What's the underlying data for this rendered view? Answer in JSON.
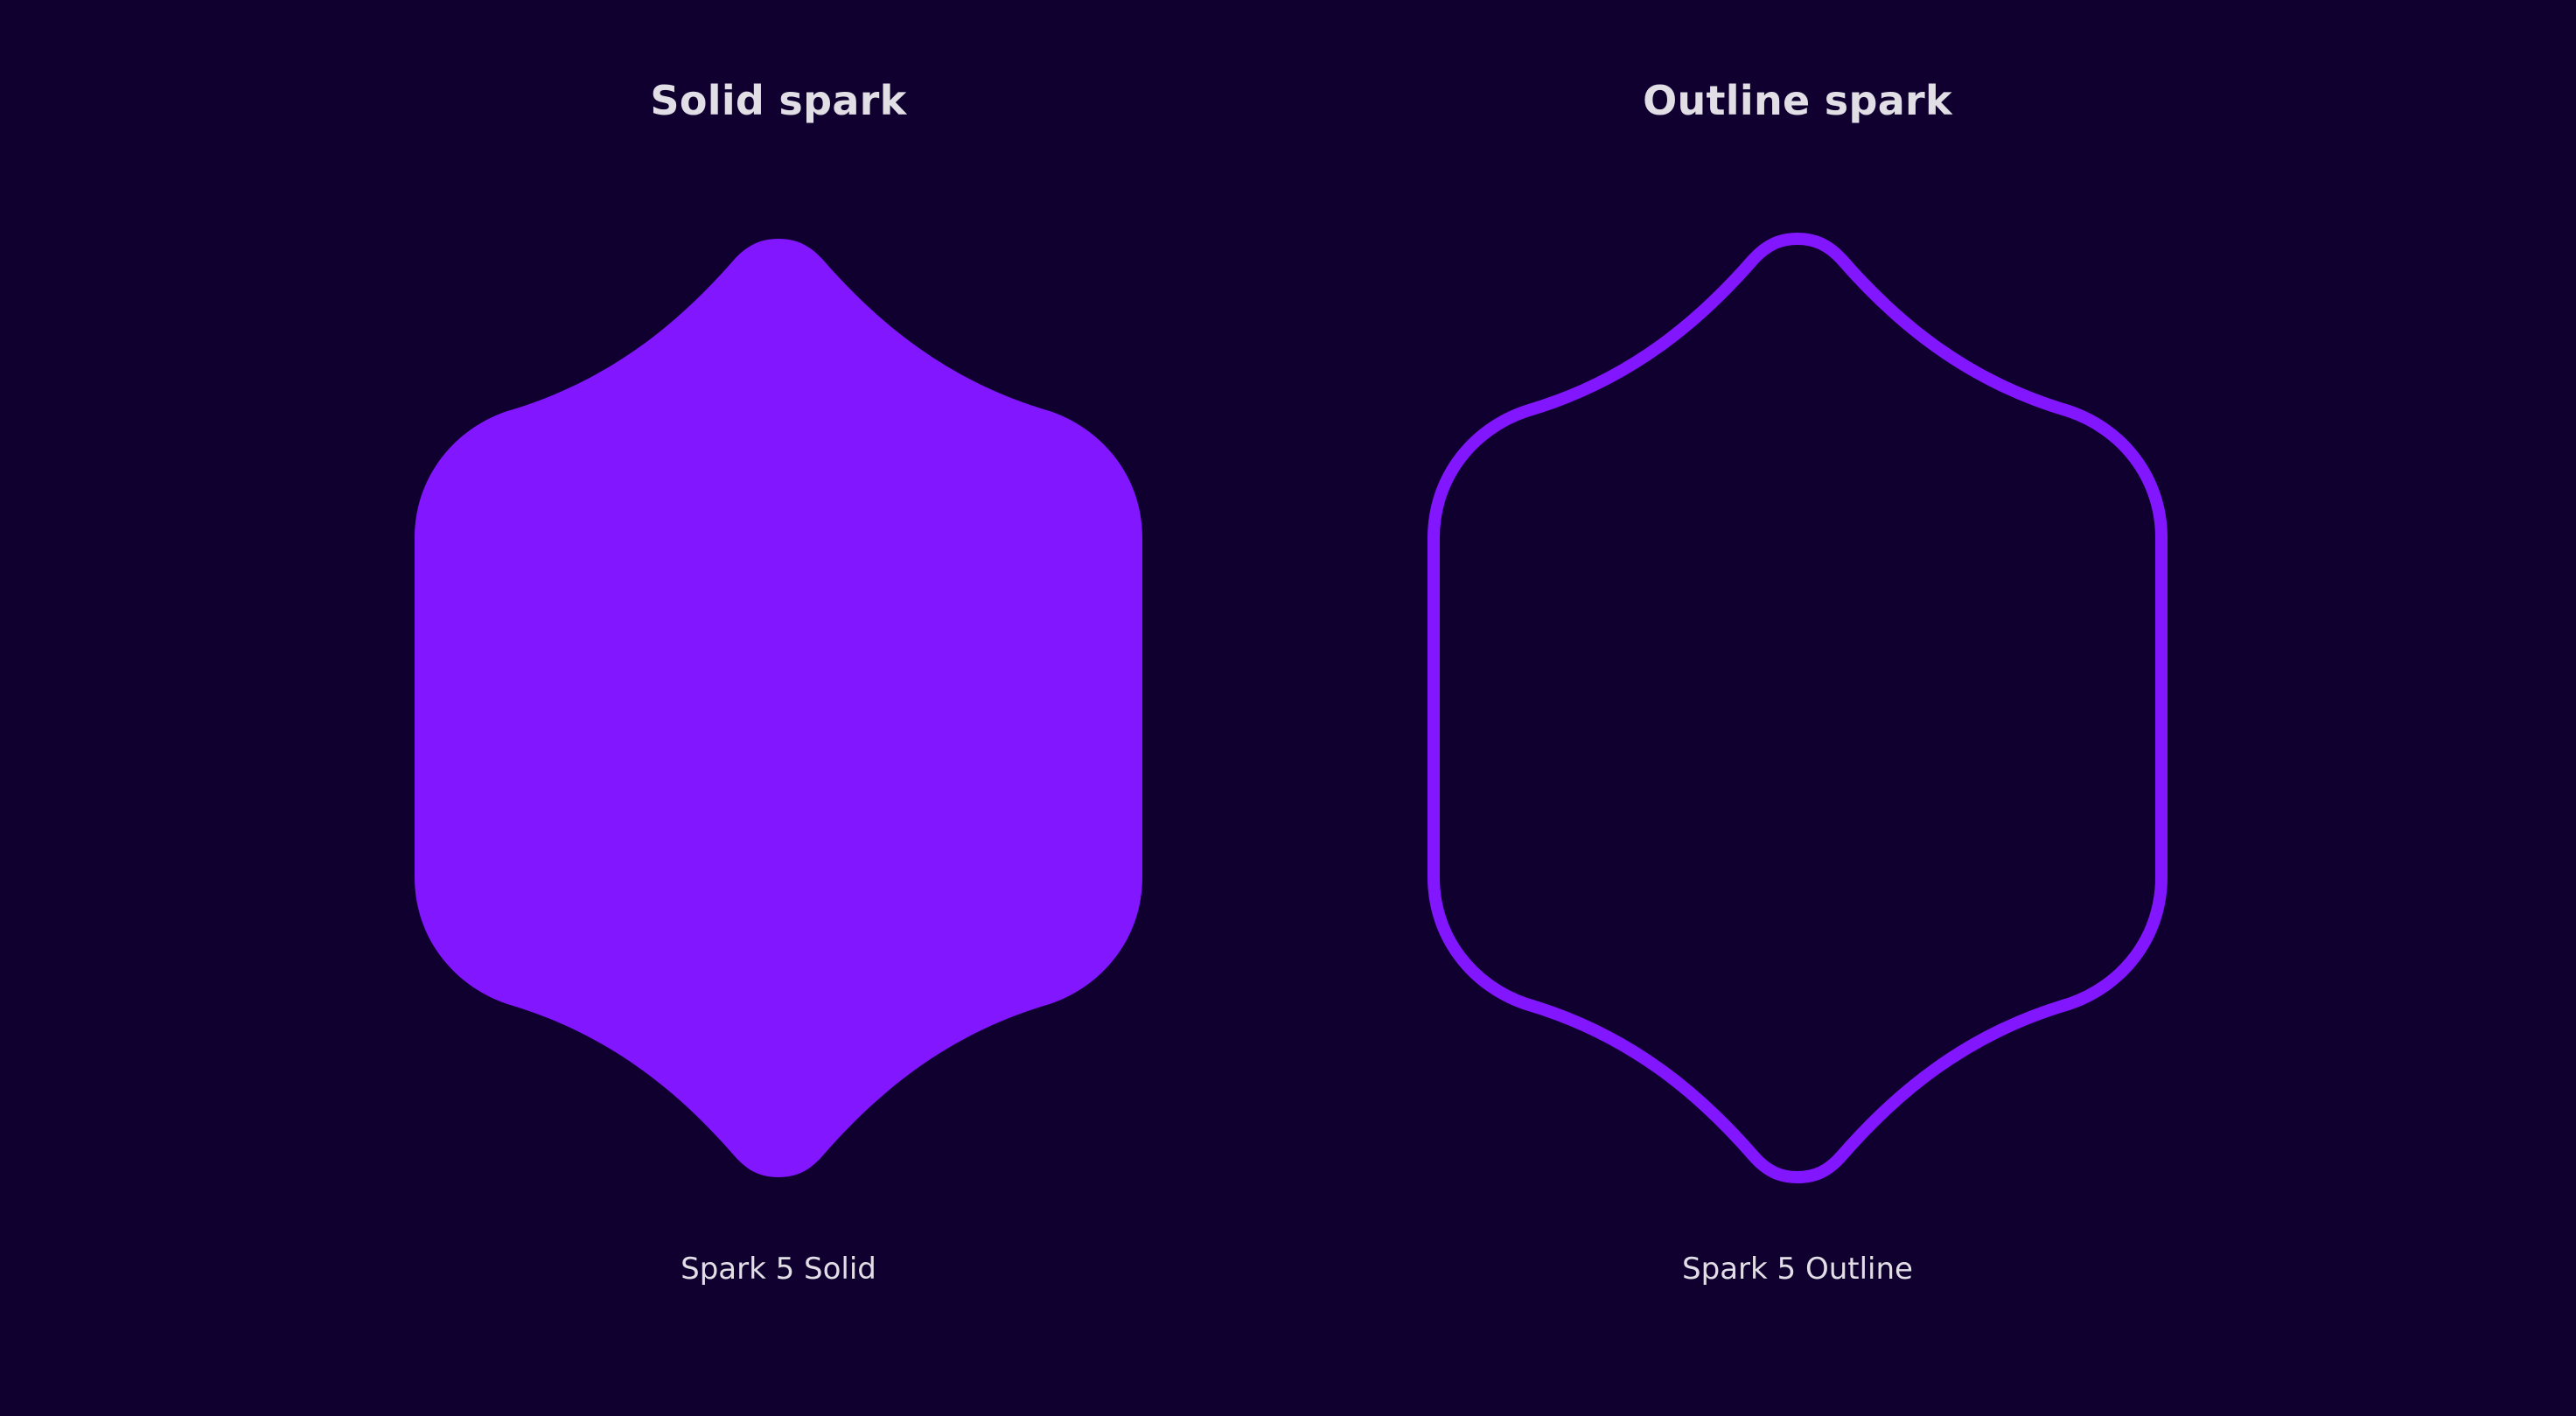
{
  "panels": [
    {
      "title": "Solid spark",
      "caption": "Spark 5 Solid",
      "icon": "spark-5-solid-icon",
      "fill_color": "#8217ff"
    },
    {
      "title": "Outline spark",
      "caption": "Spark 5 Outline",
      "icon": "spark-5-outline-icon",
      "stroke_color": "#8217ff"
    }
  ],
  "colors": {
    "background": "#0f0030",
    "text": "#e2dee6"
  }
}
